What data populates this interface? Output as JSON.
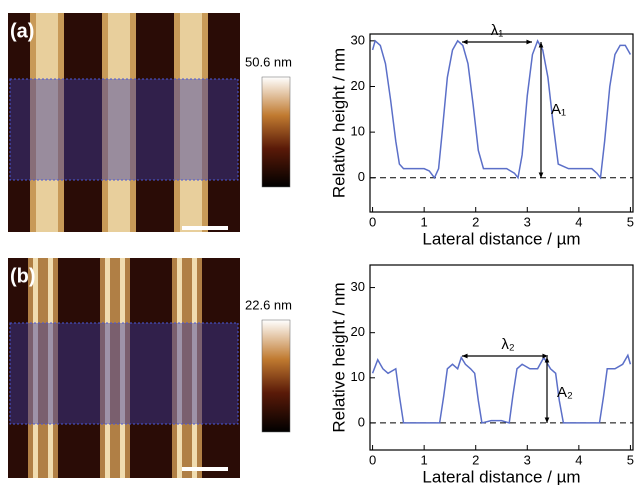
{
  "images": [
    {
      "label": "(a)",
      "colorbar_label": "50.6 nm"
    },
    {
      "label": "(b)",
      "colorbar_label": "22.6 nm"
    }
  ],
  "chart_data": [
    {
      "type": "line",
      "xlabel": "Lateral distance / µm",
      "ylabel": "Relative height / nm",
      "xlim": [
        -0.05,
        5.05
      ],
      "ylim": [
        -7.5,
        31.5
      ],
      "xticks": [
        0,
        1,
        2,
        3,
        4,
        5
      ],
      "yticks": [
        0,
        10,
        20,
        30
      ],
      "baseline": 0,
      "annotations": [
        "λ₁",
        "A₁"
      ],
      "series": [
        {
          "color": "#5b6fc8",
          "x": [
            0,
            0.05,
            0.15,
            0.25,
            0.35,
            0.45,
            0.52,
            0.6,
            0.8,
            1.0,
            1.1,
            1.2,
            1.28,
            1.35,
            1.45,
            1.55,
            1.65,
            1.75,
            1.85,
            1.95,
            2.05,
            2.15,
            2.4,
            2.6,
            2.75,
            2.82,
            2.9,
            3.0,
            3.1,
            3.2,
            3.3,
            3.4,
            3.5,
            3.6,
            3.8,
            4.0,
            4.25,
            4.35,
            4.42,
            4.5,
            4.6,
            4.7,
            4.8,
            4.9,
            5.0
          ],
          "values": [
            28,
            30,
            29,
            25,
            17,
            8,
            3,
            2,
            2,
            2,
            1.5,
            0,
            2,
            10,
            22,
            28,
            30,
            29,
            25,
            16,
            6,
            2,
            2,
            2,
            1,
            0,
            5,
            18,
            27,
            30,
            28,
            22,
            12,
            3,
            2,
            2,
            2,
            1,
            0,
            8,
            20,
            27,
            29,
            29,
            27
          ]
        }
      ]
    },
    {
      "type": "line",
      "xlabel": "Lateral distance / µm",
      "ylabel": "Relative height / nm",
      "xlim": [
        -0.05,
        5.05
      ],
      "ylim": [
        -6,
        35
      ],
      "xticks": [
        0,
        1,
        2,
        3,
        4,
        5
      ],
      "yticks": [
        0,
        10,
        20,
        30
      ],
      "baseline": 0,
      "annotations": [
        "λ₂",
        "A₂"
      ],
      "series": [
        {
          "color": "#5b6fc8",
          "x": [
            0,
            0.1,
            0.2,
            0.3,
            0.45,
            0.52,
            0.6,
            0.8,
            1.0,
            1.3,
            1.38,
            1.45,
            1.55,
            1.65,
            1.72,
            1.8,
            1.9,
            1.98,
            2.05,
            2.12,
            2.3,
            2.5,
            2.65,
            2.72,
            2.8,
            2.9,
            3.05,
            3.2,
            3.32,
            3.45,
            3.55,
            3.62,
            3.7,
            3.9,
            4.2,
            4.4,
            4.48,
            4.55,
            4.7,
            4.85,
            4.95,
            5.0
          ],
          "values": [
            11,
            14,
            12,
            11,
            12,
            6,
            0,
            0,
            0,
            0,
            6,
            12,
            13,
            12,
            14.5,
            13,
            12,
            11,
            5,
            0,
            0.5,
            0.5,
            0,
            6,
            12,
            13,
            12,
            12,
            14.5,
            12,
            11,
            5,
            0,
            0,
            0,
            0,
            6,
            12,
            12,
            13,
            15,
            13
          ]
        }
      ]
    }
  ]
}
